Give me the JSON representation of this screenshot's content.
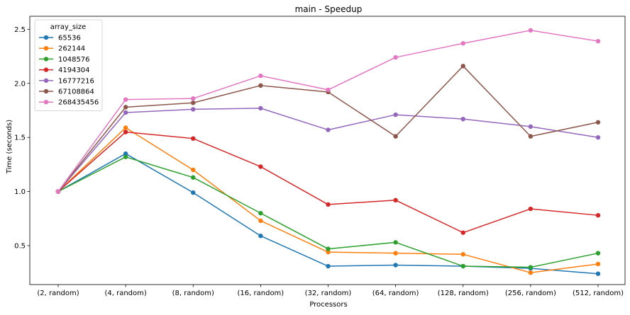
{
  "chart_data": {
    "type": "line",
    "title": "main - Speedup",
    "xlabel": "Processors",
    "ylabel": "Time (seconds)",
    "categories": [
      "(2, random)",
      "(4, random)",
      "(8, random)",
      "(16, random)",
      "(32, random)",
      "(64, random)",
      "(128, random)",
      "(256, random)",
      "(512, random)"
    ],
    "yticks": [
      "0.5",
      "1.0",
      "1.5",
      "2.0",
      "2.5"
    ],
    "ylim": [
      0.14,
      2.62
    ],
    "grid": false,
    "legend": {
      "title": "array_size",
      "position": "top-left"
    },
    "series": [
      {
        "name": "65536",
        "color": "#1f77b4",
        "values": [
          1.0,
          1.35,
          0.99,
          0.59,
          0.31,
          0.32,
          0.31,
          0.29,
          0.24
        ]
      },
      {
        "name": "262144",
        "color": "#ff7f0e",
        "values": [
          1.0,
          1.59,
          1.2,
          0.73,
          0.44,
          0.43,
          0.42,
          0.25,
          0.33
        ]
      },
      {
        "name": "1048576",
        "color": "#2ca02c",
        "values": [
          1.0,
          1.32,
          1.13,
          0.8,
          0.47,
          0.53,
          0.31,
          0.3,
          0.43
        ]
      },
      {
        "name": "4194304",
        "color": "#d62728",
        "values": [
          1.0,
          1.55,
          1.49,
          1.23,
          0.88,
          0.92,
          0.62,
          0.84,
          0.78
        ]
      },
      {
        "name": "16777216",
        "color": "#9467bd",
        "values": [
          1.0,
          1.73,
          1.76,
          1.77,
          1.57,
          1.71,
          1.67,
          1.6,
          1.5
        ]
      },
      {
        "name": "67108864",
        "color": "#8c564b",
        "values": [
          1.0,
          1.78,
          1.82,
          1.98,
          1.92,
          1.51,
          2.16,
          1.51,
          1.64
        ]
      },
      {
        "name": "268435456",
        "color": "#e377c2",
        "values": [
          1.0,
          1.85,
          1.86,
          2.07,
          1.94,
          2.24,
          2.37,
          2.49,
          2.39
        ]
      }
    ]
  }
}
